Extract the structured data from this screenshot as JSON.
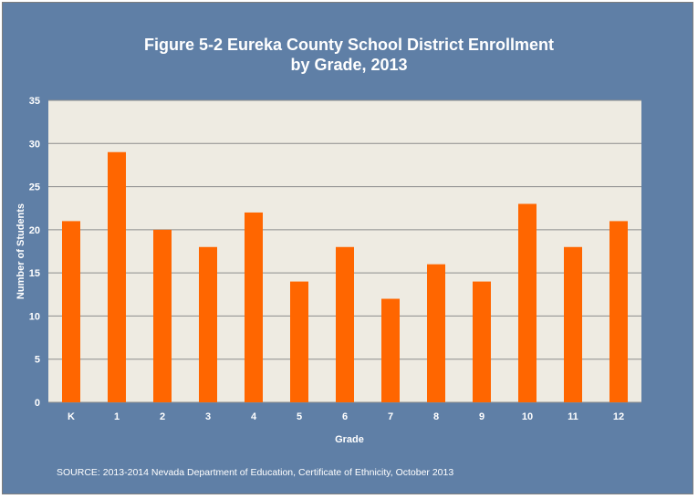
{
  "chart_data": {
    "type": "bar",
    "title_lines": [
      "Figure 5-2 Eureka County School District Enrollment",
      "by Grade, 2013"
    ],
    "xlabel": "Grade",
    "ylabel": "Number of Students",
    "categories": [
      "K",
      "1",
      "2",
      "3",
      "4",
      "5",
      "6",
      "7",
      "8",
      "9",
      "10",
      "11",
      "12"
    ],
    "values": [
      21,
      29,
      20,
      18,
      22,
      14,
      18,
      12,
      16,
      14,
      23,
      18,
      21
    ],
    "ylim": [
      0,
      35
    ],
    "yticks": [
      "0",
      "5",
      "10",
      "15",
      "20",
      "25",
      "30",
      "35"
    ],
    "grid": true,
    "legend": "none",
    "source": "SOURCE: 2013-2014 Nevada Department of Education, Certificate of Ethnicity, October 2013",
    "colors": {
      "frame": "#5f7fa6",
      "plot_background": "#eeebe2",
      "bar": "#ff6600",
      "gridline": "#8c8c8c"
    }
  }
}
